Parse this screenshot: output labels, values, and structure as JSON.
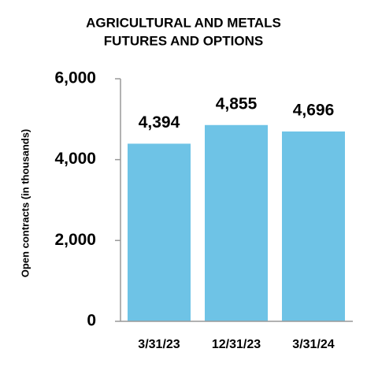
{
  "chart_data": {
    "type": "bar",
    "title": [
      "AGRICULTURAL AND METALS",
      "FUTURES AND OPTIONS"
    ],
    "y_label": "Open contracts (in thousands)",
    "categories": [
      "3/31/23",
      "12/31/23",
      "3/31/24"
    ],
    "values": [
      4394,
      4855,
      4696
    ],
    "value_labels": [
      "4,394",
      "4,855",
      "4,696"
    ],
    "color": "#6ec3e6",
    "ylim": [
      0,
      6000
    ],
    "yticks": [
      0,
      {
        "value": 2000,
        "label": "2,000"
      },
      {
        "value": 4000,
        "label": "4,000"
      },
      {
        "value": 6000,
        "label": "6,000"
      }
    ]
  }
}
